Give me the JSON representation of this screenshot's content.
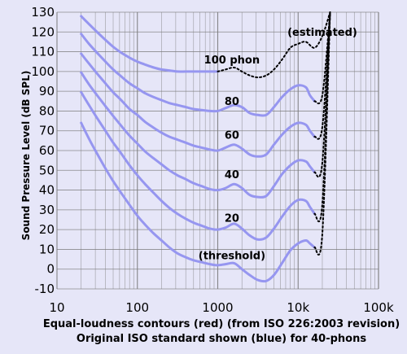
{
  "chart_data": {
    "type": "line",
    "xscale": "log",
    "xlim": [
      10,
      100000
    ],
    "ylim": [
      -10,
      130
    ],
    "grid": true,
    "xlabel_lines": [
      "Equal-loudness contours (red) (from ISO 226:2003 revision)",
      "Original ISO standard shown (blue) for 40-phons"
    ],
    "ylabel": "Sound Pressure Level (dB SPL)",
    "x_ticks": [
      {
        "value": 10,
        "label": "10"
      },
      {
        "value": 100,
        "label": "100"
      },
      {
        "value": 1000,
        "label": "1000"
      },
      {
        "value": 10000,
        "label": "10k"
      },
      {
        "value": 100000,
        "label": "100k"
      }
    ],
    "y_ticks": [
      {
        "value": 130,
        "label": "130"
      },
      {
        "value": 120,
        "label": "120"
      },
      {
        "value": 110,
        "label": "110"
      },
      {
        "value": 100,
        "label": "100"
      },
      {
        "value": 90,
        "label": "90"
      },
      {
        "value": 80,
        "label": "80"
      },
      {
        "value": 70,
        "label": "70"
      },
      {
        "value": 60,
        "label": "60"
      },
      {
        "value": 50,
        "label": "50"
      },
      {
        "value": 40,
        "label": "40"
      },
      {
        "value": 30,
        "label": "30"
      },
      {
        "value": 20,
        "label": "20"
      },
      {
        "value": 10,
        "label": "10"
      },
      {
        "value": 0,
        "label": "0"
      },
      {
        "value": -10,
        "label": "-10"
      }
    ],
    "annotations": [
      {
        "text": "(estimated)",
        "x": 20000,
        "y": 118
      },
      {
        "text": "100 phon",
        "x": 1500,
        "y": 104
      },
      {
        "text": "80",
        "x": 1500,
        "y": 83
      },
      {
        "text": "60",
        "x": 1500,
        "y": 66
      },
      {
        "text": "40",
        "x": 1500,
        "y": 46
      },
      {
        "text": "20",
        "x": 1500,
        "y": 24
      },
      {
        "text": "(threshold)",
        "x": 1500,
        "y": 5
      }
    ],
    "series": [
      {
        "phon": 100,
        "solid": [
          [
            20,
            128
          ],
          [
            25,
            124
          ],
          [
            31.5,
            120
          ],
          [
            40,
            116
          ],
          [
            50,
            112.5
          ],
          [
            63,
            109.5
          ],
          [
            80,
            107
          ],
          [
            100,
            105
          ],
          [
            125,
            103.5
          ],
          [
            160,
            102
          ],
          [
            200,
            101
          ],
          [
            250,
            100.5
          ],
          [
            315,
            100
          ],
          [
            400,
            100
          ],
          [
            500,
            100
          ],
          [
            630,
            100
          ],
          [
            800,
            100
          ],
          [
            1000,
            100
          ]
        ],
        "dotted": [
          [
            1000,
            100
          ],
          [
            1250,
            101
          ],
          [
            1600,
            102
          ],
          [
            2000,
            100
          ],
          [
            2500,
            98
          ],
          [
            3150,
            97
          ],
          [
            4000,
            98
          ],
          [
            5000,
            101
          ],
          [
            6300,
            106
          ],
          [
            8000,
            112
          ],
          [
            10000,
            114
          ],
          [
            12500,
            115
          ],
          [
            16000,
            112
          ],
          [
            20000,
            118
          ],
          [
            25000,
            130
          ]
        ]
      },
      {
        "phon": 80,
        "solid": [
          [
            20,
            119
          ],
          [
            25,
            114
          ],
          [
            31.5,
            109.5
          ],
          [
            40,
            105
          ],
          [
            50,
            101
          ],
          [
            63,
            97.5
          ],
          [
            80,
            94
          ],
          [
            100,
            91.5
          ],
          [
            125,
            89
          ],
          [
            160,
            87
          ],
          [
            200,
            85.5
          ],
          [
            250,
            84
          ],
          [
            315,
            83
          ],
          [
            400,
            82
          ],
          [
            500,
            81
          ],
          [
            630,
            80.5
          ],
          [
            800,
            80
          ],
          [
            1000,
            80
          ],
          [
            1250,
            81.5
          ],
          [
            1600,
            83
          ],
          [
            2000,
            82
          ],
          [
            2500,
            79
          ],
          [
            3150,
            78
          ],
          [
            4000,
            78
          ],
          [
            5000,
            82
          ],
          [
            6300,
            87
          ],
          [
            8000,
            91
          ],
          [
            10000,
            93
          ],
          [
            12500,
            92
          ],
          [
            14000,
            88
          ],
          [
            16000,
            85
          ]
        ],
        "dotted": [
          [
            16000,
            85
          ],
          [
            20000,
            88
          ],
          [
            25000,
            130
          ]
        ]
      },
      {
        "phon": 60,
        "solid": [
          [
            20,
            109
          ],
          [
            25,
            104
          ],
          [
            31.5,
            99
          ],
          [
            40,
            94
          ],
          [
            50,
            89.5
          ],
          [
            63,
            85.5
          ],
          [
            80,
            81
          ],
          [
            100,
            78
          ],
          [
            125,
            74.5
          ],
          [
            160,
            71.5
          ],
          [
            200,
            69
          ],
          [
            250,
            67
          ],
          [
            315,
            65.5
          ],
          [
            400,
            64
          ],
          [
            500,
            62.5
          ],
          [
            630,
            61.5
          ],
          [
            800,
            60.5
          ],
          [
            1000,
            60
          ],
          [
            1250,
            61.5
          ],
          [
            1600,
            63
          ],
          [
            2000,
            61
          ],
          [
            2500,
            58
          ],
          [
            3150,
            57
          ],
          [
            4000,
            58
          ],
          [
            5000,
            63
          ],
          [
            6300,
            68
          ],
          [
            8000,
            72
          ],
          [
            10000,
            74
          ],
          [
            12500,
            73
          ],
          [
            14000,
            70
          ],
          [
            16000,
            67
          ]
        ],
        "dotted": [
          [
            16000,
            67
          ],
          [
            20000,
            72
          ],
          [
            25000,
            130
          ]
        ]
      },
      {
        "phon": 40,
        "solid": [
          [
            20,
            99.5
          ],
          [
            25,
            93.5
          ],
          [
            31.5,
            88
          ],
          [
            40,
            82.5
          ],
          [
            50,
            77.5
          ],
          [
            63,
            72.5
          ],
          [
            80,
            67.5
          ],
          [
            100,
            63.5
          ],
          [
            125,
            59.5
          ],
          [
            160,
            56
          ],
          [
            200,
            53
          ],
          [
            250,
            50
          ],
          [
            315,
            47.5
          ],
          [
            400,
            45.5
          ],
          [
            500,
            43.5
          ],
          [
            630,
            42
          ],
          [
            800,
            40.5
          ],
          [
            1000,
            40
          ],
          [
            1250,
            41
          ],
          [
            1600,
            43
          ],
          [
            2000,
            41
          ],
          [
            2500,
            37.5
          ],
          [
            3150,
            36.5
          ],
          [
            4000,
            37
          ],
          [
            5000,
            42
          ],
          [
            6300,
            48
          ],
          [
            8000,
            52.5
          ],
          [
            10000,
            55
          ],
          [
            12500,
            54.5
          ],
          [
            14000,
            52
          ],
          [
            16000,
            49
          ]
        ],
        "dotted": [
          [
            16000,
            49
          ],
          [
            20000,
            54
          ],
          [
            25000,
            130
          ]
        ]
      },
      {
        "phon": 20,
        "solid": [
          [
            20,
            89.5
          ],
          [
            25,
            83
          ],
          [
            31.5,
            76.5
          ],
          [
            40,
            70
          ],
          [
            50,
            64
          ],
          [
            63,
            58.5
          ],
          [
            80,
            52.5
          ],
          [
            100,
            47.5
          ],
          [
            125,
            43
          ],
          [
            160,
            38.5
          ],
          [
            200,
            34.5
          ],
          [
            250,
            31
          ],
          [
            315,
            28
          ],
          [
            400,
            25.5
          ],
          [
            500,
            23.5
          ],
          [
            630,
            22
          ],
          [
            800,
            20.5
          ],
          [
            1000,
            20
          ],
          [
            1250,
            21
          ],
          [
            1600,
            23
          ],
          [
            2000,
            20.5
          ],
          [
            2500,
            17
          ],
          [
            3150,
            15
          ],
          [
            4000,
            16
          ],
          [
            5000,
            20.5
          ],
          [
            6300,
            26.5
          ],
          [
            8000,
            32
          ],
          [
            10000,
            35
          ],
          [
            12500,
            34.5
          ],
          [
            14000,
            31.5
          ],
          [
            16000,
            28
          ]
        ],
        "dotted": [
          [
            16000,
            28
          ],
          [
            20000,
            33
          ],
          [
            25000,
            130
          ]
        ]
      },
      {
        "phon": 0,
        "solid": [
          [
            20,
            74
          ],
          [
            25,
            66
          ],
          [
            31.5,
            58.5
          ],
          [
            40,
            51
          ],
          [
            50,
            44.5
          ],
          [
            63,
            38.5
          ],
          [
            80,
            32.5
          ],
          [
            100,
            27
          ],
          [
            125,
            22.5
          ],
          [
            160,
            18
          ],
          [
            200,
            14.5
          ],
          [
            250,
            11
          ],
          [
            315,
            8
          ],
          [
            400,
            6
          ],
          [
            500,
            4.5
          ],
          [
            630,
            3.5
          ],
          [
            800,
            2.5
          ],
          [
            1000,
            2
          ],
          [
            1250,
            2.5
          ],
          [
            1600,
            3
          ],
          [
            2000,
            0
          ],
          [
            2500,
            -3
          ],
          [
            3150,
            -5.5
          ],
          [
            4000,
            -6
          ],
          [
            5000,
            -3
          ],
          [
            6300,
            3
          ],
          [
            8000,
            9.5
          ],
          [
            10000,
            13
          ],
          [
            12500,
            14.5
          ],
          [
            14000,
            13
          ],
          [
            16000,
            11
          ]
        ],
        "dotted": [
          [
            16000,
            11
          ],
          [
            20000,
            18
          ],
          [
            25000,
            130
          ]
        ]
      }
    ],
    "colors": {
      "background": "#e6e6f8",
      "grid": "#7a7a7a",
      "curve": "#9696f0",
      "dotted": "#000000"
    }
  }
}
